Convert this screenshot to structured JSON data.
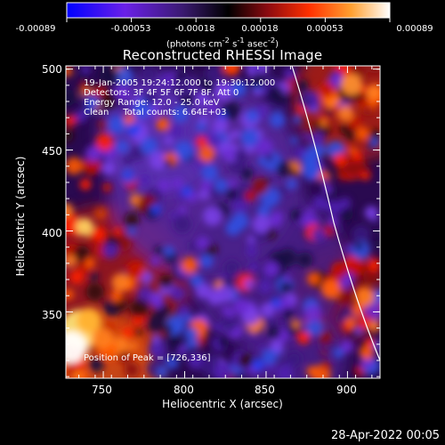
{
  "colorbar": {
    "ticks": [
      "-0.00089",
      "-0.00053",
      "-0.00018",
      "0.00018",
      "0.00053",
      "0.00089"
    ],
    "units_html": "(photons cm<sup>-2</sup> s<sup>-1</sup> asec<sup>-2</sup>)"
  },
  "chart_data": {
    "type": "heatmap",
    "title": "Reconstructed RHESSI Image",
    "xlabel": "Heliocentric X (arcsec)",
    "ylabel": "Heliocentric Y (arcsec)",
    "xlim": [
      727,
      920
    ],
    "ylim": [
      309,
      502
    ],
    "xticks": [
      750,
      800,
      850,
      900
    ],
    "yticks": [
      350,
      400,
      450,
      500
    ],
    "color_range": [
      -0.00089,
      0.00089
    ],
    "colormap": [
      "#0000ff",
      "#8020e0",
      "#302060",
      "#000000",
      "#a01010",
      "#ff5000",
      "#ffd060",
      "#ffffff"
    ],
    "annotations": [
      "19-Jan-2005 19:24:12.000 to 19:30:12.000",
      "Detectors: 3F 4F 5F 6F 7F 8F, Att 0",
      "Energy Range: 12.0 - 25.0 keV",
      "Clean     Total counts: 6.64E+03"
    ],
    "peak_label": "Position of Peak = [726,336]",
    "peak": [
      726,
      336
    ],
    "limb_line": true
  },
  "timestamp": "28-Apr-2022 00:05"
}
